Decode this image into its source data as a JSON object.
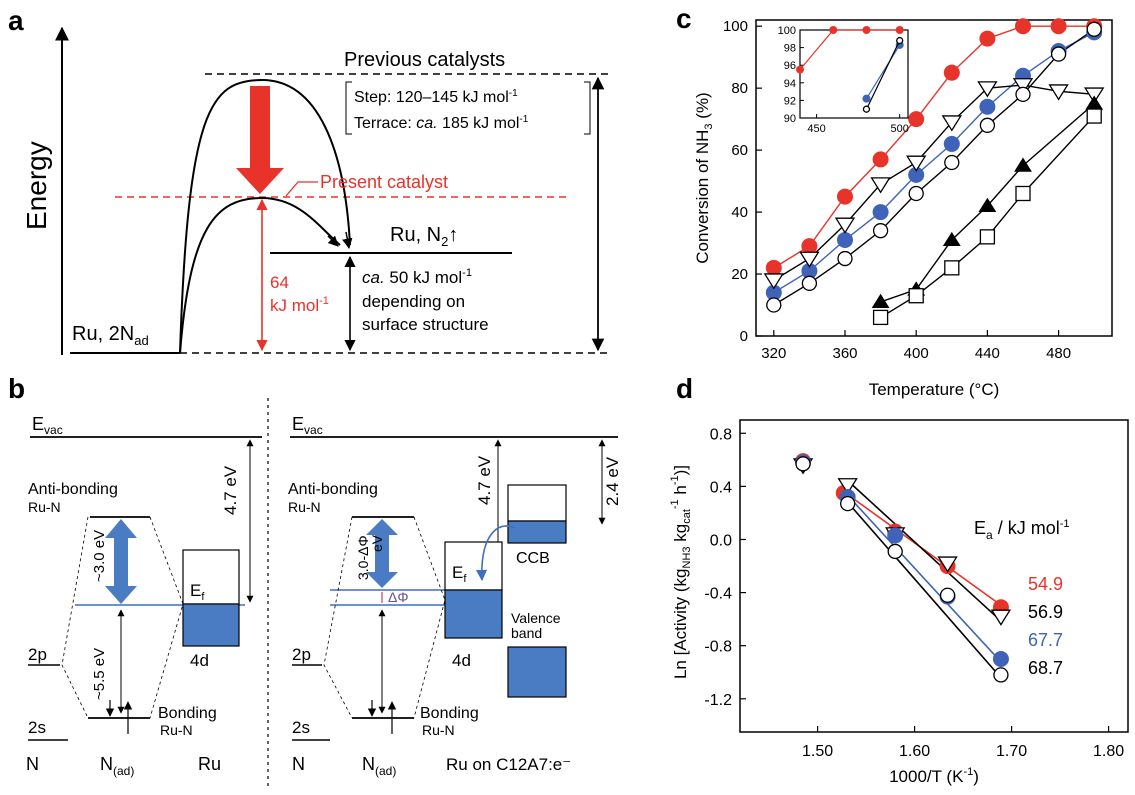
{
  "panels": {
    "a": {
      "letter": "a",
      "y_axis_label": "Energy",
      "previous_label": "Previous catalysts",
      "step_text": "Step: 120–145 kJ mol",
      "step_sup": "-1",
      "terrace_pre": "Terrace: ",
      "terrace_ital": "ca.",
      "terrace_post": " 185 kJ mol",
      "terrace_sup": "-1",
      "present_label": "Present catalyst",
      "ru_n2_label": "Ru, N",
      "ru_n2_sub": "2",
      "ru_n2_arrow": "↑",
      "ru_2nad_label": "Ru, 2N",
      "ru_2nad_sub": "ad",
      "barrier_value": "64",
      "barrier_unit": "kJ mol",
      "barrier_sup": "-1",
      "desorb_ital": "ca.",
      "desorb_line1": " 50 kJ mol",
      "desorb_sup": "-1",
      "desorb_line2": "depending on",
      "desorb_line3": "surface structure",
      "colors": {
        "red": "#e8332a",
        "dash_red": "#e8332a"
      }
    },
    "b": {
      "letter": "b",
      "evac": "E",
      "evac_sub": "vac",
      "left": {
        "antibonding1": "Anti-bonding",
        "antibonding2": "Ru-N",
        "gap_label": "~3.0 eV",
        "lower_gap_label": "~5.5 eV",
        "work_function": "4.7 eV",
        "ef": "E",
        "ef_sub": "f",
        "band_label": "4d",
        "level_2p": "2p",
        "level_2s": "2s",
        "bonding1": "Bonding",
        "bonding2": "Ru-N",
        "col_n": "N",
        "col_nad": "N",
        "col_nad_sub": "(ad)",
        "col_ru": "Ru"
      },
      "right": {
        "antibonding1": "Anti-bonding",
        "antibonding2": "Ru-N",
        "gap_label1": "3.0-ΔΦ",
        "gap_label2": "eV",
        "delta_phi": "ΔΦ",
        "work_function": "4.7 eV",
        "ccb_offset": "2.4 eV",
        "ef": "E",
        "ef_sub": "f",
        "band_label": "4d",
        "ccb_label": "CCB",
        "valence1": "Valence",
        "valence2": "band",
        "level_2p": "2p",
        "level_2s": "2s",
        "bonding1": "Bonding",
        "bonding2": "Ru-N",
        "col_n": "N",
        "col_nad": "N",
        "col_nad_sub": "(ad)",
        "col_ru": "Ru on C12A7:e⁻"
      },
      "colors": {
        "blue": "#4a7cc4",
        "line_blue": "#3f6fc0"
      }
    }
  },
  "chart_data": [
    {
      "panel": "c",
      "type": "line",
      "letter": "c",
      "xlabel": "Temperature (°C)",
      "ylabel_pre": "Conversion of NH",
      "ylabel_sub": "3",
      "ylabel_post": " (%)",
      "xlim": [
        310,
        510
      ],
      "ylim": [
        0,
        102
      ],
      "xticks": [
        320,
        360,
        400,
        440,
        480
      ],
      "yticks": [
        0,
        20,
        40,
        60,
        80,
        100
      ],
      "series": [
        {
          "marker": "circle-red",
          "color": "#e8332a",
          "x": [
            320,
            340,
            360,
            380,
            400,
            420,
            440,
            460,
            480,
            500
          ],
          "y": [
            22,
            29,
            45,
            57,
            70,
            85,
            96,
            100,
            100,
            100
          ]
        },
        {
          "marker": "circle-blue",
          "color": "#3e63b8",
          "x": [
            320,
            340,
            360,
            380,
            400,
            420,
            440,
            460,
            480,
            500
          ],
          "y": [
            14,
            21,
            31,
            40,
            52,
            62,
            74,
            84,
            92,
            98
          ]
        },
        {
          "marker": "triangle-down-open",
          "color": "#000000",
          "x": [
            320,
            340,
            360,
            380,
            400,
            420,
            440,
            460,
            480,
            500
          ],
          "y": [
            18,
            25,
            36,
            49,
            56,
            69,
            80,
            81,
            79,
            78
          ]
        },
        {
          "marker": "circle-open",
          "color": "#000000",
          "x": [
            320,
            340,
            360,
            380,
            400,
            420,
            440,
            460,
            480,
            500
          ],
          "y": [
            10,
            17,
            25,
            34,
            46,
            56,
            68,
            78,
            91,
            99
          ]
        },
        {
          "marker": "triangle-up-filled",
          "color": "#000000",
          "x": [
            380,
            400,
            420,
            440,
            460,
            500
          ],
          "y": [
            11,
            15,
            31,
            42,
            55,
            75
          ]
        },
        {
          "marker": "square-open",
          "color": "#000000",
          "x": [
            380,
            400,
            420,
            440,
            460,
            500
          ],
          "y": [
            6,
            13,
            22,
            32,
            46,
            71
          ]
        }
      ],
      "inset": {
        "xlim": [
          440,
          505
        ],
        "ylim": [
          90,
          100
        ],
        "xticks": [
          450,
          500
        ],
        "yticks": [
          90,
          92,
          94,
          96,
          98,
          100
        ],
        "series": [
          {
            "marker": "circle-red",
            "color": "#e8332a",
            "x": [
              440,
              460,
              480,
              500
            ],
            "y": [
              95.5,
              100,
              100,
              100
            ]
          },
          {
            "marker": "circle-blue",
            "color": "#3e63b8",
            "x": [
              480,
              500
            ],
            "y": [
              92.2,
              98.3
            ]
          },
          {
            "marker": "circle-open",
            "color": "#000000",
            "x": [
              480,
              500
            ],
            "y": [
              91,
              98.8
            ]
          }
        ]
      }
    },
    {
      "panel": "d",
      "type": "scatter",
      "letter": "d",
      "xlabel": "1000/T (K",
      "xlabel_sup": "-1",
      "xlabel_post": ")",
      "ylabel": "Ln [Activity (kg",
      "ylabel_sub1": "NH3",
      "ylabel_mid": " kg",
      "ylabel_sub2": "cat",
      "ylabel_sup1": "-1",
      "ylabel_mid2": " h",
      "ylabel_sup2": "-1",
      "ylabel_post": ")]",
      "xlim": [
        1.42,
        1.82
      ],
      "ylim": [
        -1.45,
        0.9
      ],
      "xticks": [
        1.5,
        1.6,
        1.7,
        1.8
      ],
      "xtick_labels": [
        "1.50",
        "1.60",
        "1.70",
        "1.80"
      ],
      "yticks": [
        -1.2,
        -0.8,
        -0.4,
        0.0,
        0.4,
        0.8
      ],
      "ytick_labels": [
        "-1.2",
        "-0.8",
        "-0.4",
        "0.0",
        "0.4",
        "0.8"
      ],
      "legend_title": "E",
      "legend_title_sub": "a",
      "legend_title_post": " / kJ mol",
      "legend_title_sup": "-1",
      "series": [
        {
          "marker": "circle-red",
          "color": "#e8332a",
          "label": "54.9",
          "x": [
            1.485,
            1.527,
            1.58,
            1.634,
            1.689
          ],
          "y": [
            0.59,
            0.35,
            0.06,
            -0.2,
            -0.51
          ]
        },
        {
          "marker": "triangle-down-open",
          "color": "#000000",
          "label": "56.9",
          "x": [
            1.485,
            1.531,
            1.58,
            1.634,
            1.689
          ],
          "y": [
            0.56,
            0.41,
            0.04,
            -0.18,
            -0.58
          ]
        },
        {
          "marker": "circle-blue",
          "color": "#3e63b8",
          "label": "67.7",
          "x": [
            1.485,
            1.531,
            1.58,
            1.634,
            1.689
          ],
          "y": [
            0.58,
            0.32,
            0.03,
            -0.43,
            -0.9
          ]
        },
        {
          "marker": "circle-open",
          "color": "#000000",
          "label": "68.7",
          "x": [
            1.485,
            1.531,
            1.58,
            1.634,
            1.689
          ],
          "y": [
            0.57,
            0.27,
            -0.09,
            -0.42,
            -1.02
          ]
        }
      ],
      "fit_lines": [
        {
          "color": "#e8332a",
          "x": [
            1.525,
            1.69
          ],
          "y": [
            0.37,
            -0.5
          ]
        },
        {
          "color": "#000000",
          "x": [
            1.53,
            1.69
          ],
          "y": [
            0.45,
            -0.62
          ]
        },
        {
          "color": "#3e63b8",
          "x": [
            1.53,
            1.69
          ],
          "y": [
            0.34,
            -0.93
          ]
        },
        {
          "color": "#000000",
          "x": [
            1.525,
            1.69
          ],
          "y": [
            0.33,
            -1.05
          ]
        }
      ]
    }
  ]
}
